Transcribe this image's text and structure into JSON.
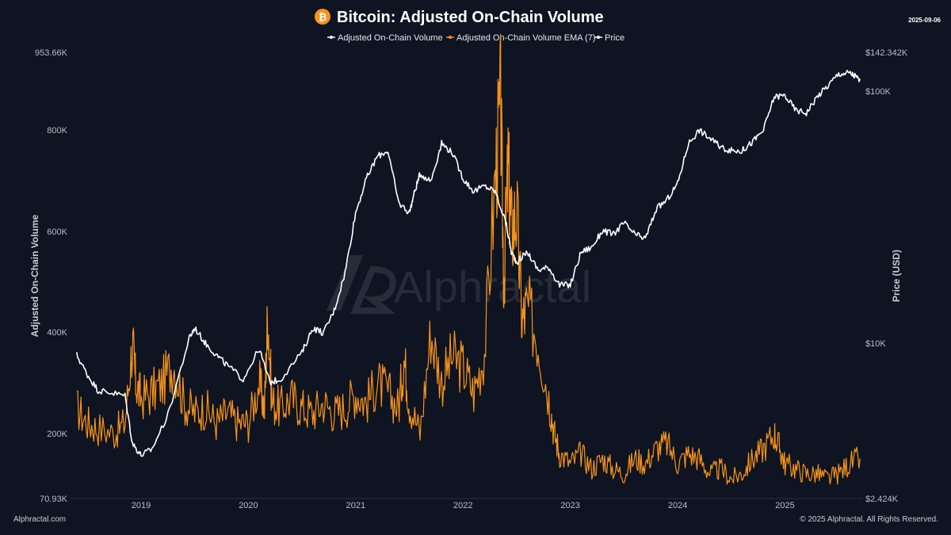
{
  "header": {
    "title": "Bitcoin: Adjusted On-Chain Volume",
    "date": "2025-09-06",
    "logo_icon": "bitcoin-icon"
  },
  "watermark": {
    "text": "Alphractal"
  },
  "footer": {
    "left": "Alphractal.com",
    "right": "© 2025 Alphractal. All Rights Reserved."
  },
  "colors": {
    "background": "#0e1421",
    "volume": "#ffffff",
    "ema": "#f7931a",
    "price": "#ffffff",
    "bitcoin_orange": "#f7931a"
  },
  "chart_data": {
    "type": "line",
    "title": "Bitcoin: Adjusted On-Chain Volume",
    "legend": {
      "placement": "top-center",
      "items": [
        "Adjusted On-Chain Volume",
        "Adjusted On-Chain Volume EMA (7)",
        "Price"
      ]
    },
    "x_axis": {
      "range": [
        2018.35,
        2025.72
      ],
      "ticks": [
        2019,
        2020,
        2021,
        2022,
        2023,
        2024,
        2025
      ],
      "tick_labels": [
        "2019",
        "2020",
        "2021",
        "2022",
        "2023",
        "2024",
        "2025"
      ]
    },
    "y_left": {
      "label": "Adjusted On-Chain Volume",
      "range": [
        70930,
        953660
      ],
      "ticks": [
        70930,
        200000,
        400000,
        600000,
        800000,
        953660
      ],
      "tick_labels": [
        "70.93K",
        "200K",
        "400K",
        "600K",
        "800K",
        "953.66K"
      ]
    },
    "y_right": {
      "label": "Price (USD)",
      "scale": "log",
      "range": [
        2424,
        142342
      ],
      "ticks": [
        2424,
        10000,
        100000,
        142342
      ],
      "tick_labels": [
        "$2.424K",
        "$10K",
        "$100K",
        "$142.342K"
      ]
    },
    "grid": false,
    "series": [
      {
        "name": "Adjusted On-Chain Volume EMA (7)",
        "axis": "left",
        "x": [
          2018.4,
          2018.5,
          2018.6,
          2018.75,
          2018.85,
          2018.92,
          2018.95,
          2019.0,
          2019.1,
          2019.2,
          2019.3,
          2019.4,
          2019.5,
          2019.6,
          2019.7,
          2019.8,
          2019.9,
          2020.0,
          2020.1,
          2020.15,
          2020.18,
          2020.22,
          2020.3,
          2020.4,
          2020.5,
          2020.6,
          2020.7,
          2020.8,
          2020.9,
          2021.0,
          2021.1,
          2021.2,
          2021.3,
          2021.4,
          2021.45,
          2021.5,
          2021.6,
          2021.7,
          2021.8,
          2021.9,
          2022.0,
          2022.1,
          2022.2,
          2022.3,
          2022.35,
          2022.38,
          2022.42,
          2022.45,
          2022.5,
          2022.55,
          2022.6,
          2022.7,
          2022.8,
          2022.85,
          2022.9,
          2023.0,
          2023.1,
          2023.2,
          2023.3,
          2023.4,
          2023.5,
          2023.6,
          2023.7,
          2023.8,
          2023.9,
          2024.0,
          2024.1,
          2024.2,
          2024.3,
          2024.4,
          2024.5,
          2024.6,
          2024.7,
          2024.8,
          2024.9,
          2024.95,
          2025.0,
          2025.1,
          2025.2,
          2025.3,
          2025.4,
          2025.5,
          2025.6,
          2025.7
        ],
        "values": [
          250000,
          220000,
          210000,
          200000,
          220000,
          380000,
          300000,
          270000,
          280000,
          300000,
          340000,
          260000,
          240000,
          250000,
          220000,
          240000,
          220000,
          220000,
          300000,
          250000,
          440000,
          260000,
          250000,
          270000,
          250000,
          240000,
          260000,
          240000,
          250000,
          280000,
          260000,
          300000,
          280000,
          250000,
          350000,
          260000,
          200000,
          400000,
          300000,
          350000,
          330000,
          280000,
          360000,
          700000,
          850000,
          500000,
          720000,
          600000,
          640000,
          420000,
          450000,
          380000,
          270000,
          200000,
          160000,
          140000,
          160000,
          130000,
          150000,
          130000,
          120000,
          150000,
          140000,
          170000,
          180000,
          140000,
          160000,
          150000,
          120000,
          130000,
          110000,
          120000,
          150000,
          170000,
          200000,
          170000,
          140000,
          130000,
          120000,
          120000,
          110000,
          120000,
          140000,
          150000
        ]
      },
      {
        "name": "Price",
        "axis": "right",
        "x": [
          2018.4,
          2018.5,
          2018.6,
          2018.7,
          2018.85,
          2018.92,
          2019.0,
          2019.1,
          2019.25,
          2019.45,
          2019.5,
          2019.6,
          2019.7,
          2019.8,
          2019.95,
          2020.1,
          2020.2,
          2020.3,
          2020.5,
          2020.6,
          2020.7,
          2020.8,
          2020.9,
          2021.0,
          2021.1,
          2021.2,
          2021.3,
          2021.4,
          2021.5,
          2021.55,
          2021.6,
          2021.7,
          2021.8,
          2021.9,
          2022.0,
          2022.1,
          2022.2,
          2022.3,
          2022.4,
          2022.45,
          2022.5,
          2022.6,
          2022.7,
          2022.8,
          2022.9,
          2023.0,
          2023.1,
          2023.2,
          2023.3,
          2023.4,
          2023.5,
          2023.6,
          2023.7,
          2023.8,
          2023.9,
          2024.0,
          2024.1,
          2024.2,
          2024.3,
          2024.4,
          2024.5,
          2024.6,
          2024.7,
          2024.8,
          2024.9,
          2025.0,
          2025.1,
          2025.2,
          2025.3,
          2025.4,
          2025.5,
          2025.6,
          2025.65,
          2025.7
        ],
        "values": [
          9000,
          7500,
          6500,
          6400,
          6200,
          4000,
          3600,
          3800,
          5200,
          10500,
          11500,
          10000,
          9000,
          8200,
          7200,
          9500,
          7000,
          7200,
          9200,
          11500,
          11000,
          13500,
          19000,
          33000,
          45000,
          55000,
          58000,
          36000,
          33000,
          40000,
          47000,
          44000,
          62000,
          57000,
          45000,
          40000,
          42000,
          40000,
          30000,
          23000,
          21000,
          23000,
          19500,
          20000,
          17000,
          17000,
          23000,
          24000,
          28000,
          27000,
          30000,
          27000,
          26000,
          34000,
          37000,
          43000,
          62000,
          70000,
          65000,
          60000,
          58000,
          58000,
          63000,
          70000,
          95000,
          96000,
          84000,
          82000,
          95000,
          105000,
          117000,
          118000,
          115000,
          110000
        ]
      }
    ]
  }
}
